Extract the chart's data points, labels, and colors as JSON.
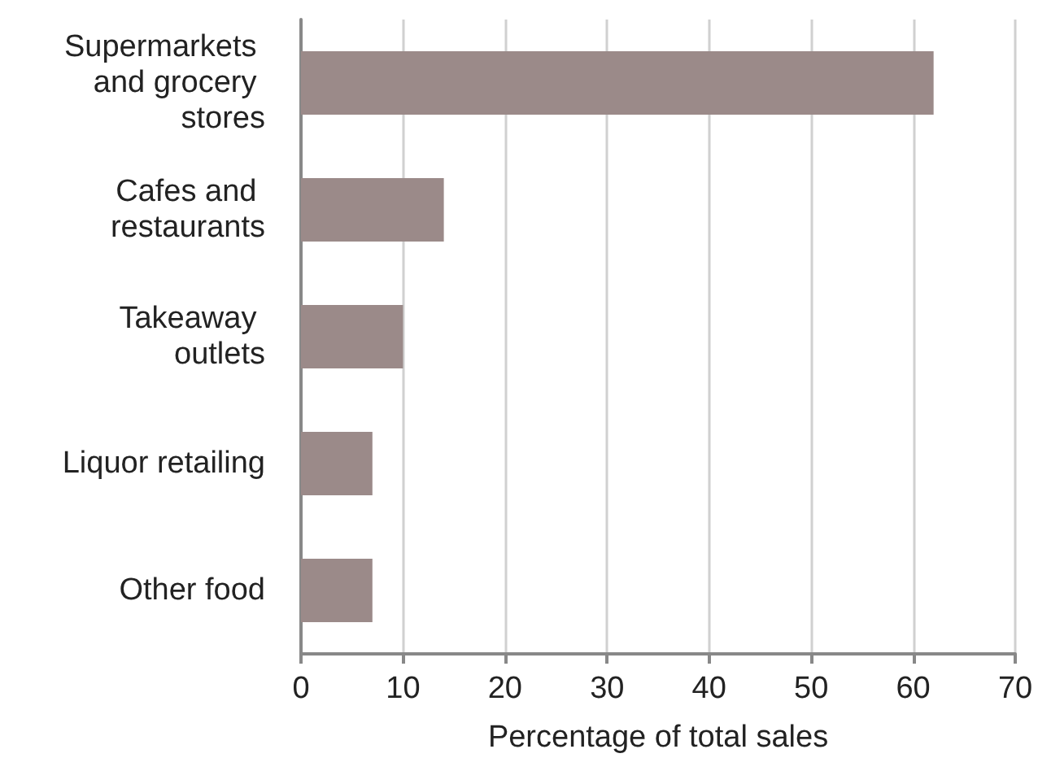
{
  "chart_data": {
    "type": "bar",
    "orientation": "horizontal",
    "xlabel": "Percentage of total sales",
    "categories": [
      "Supermarkets and grocery stores",
      "Cafes and restaurants",
      "Takeaway outlets",
      "Liquor retailing",
      "Other food"
    ],
    "values": [
      62,
      14,
      10,
      7,
      7
    ],
    "color": "#9b8a89",
    "xlim": [
      0,
      70
    ],
    "xticks": [
      0,
      10,
      20,
      30,
      40,
      50,
      60,
      70
    ],
    "grid": "x"
  }
}
